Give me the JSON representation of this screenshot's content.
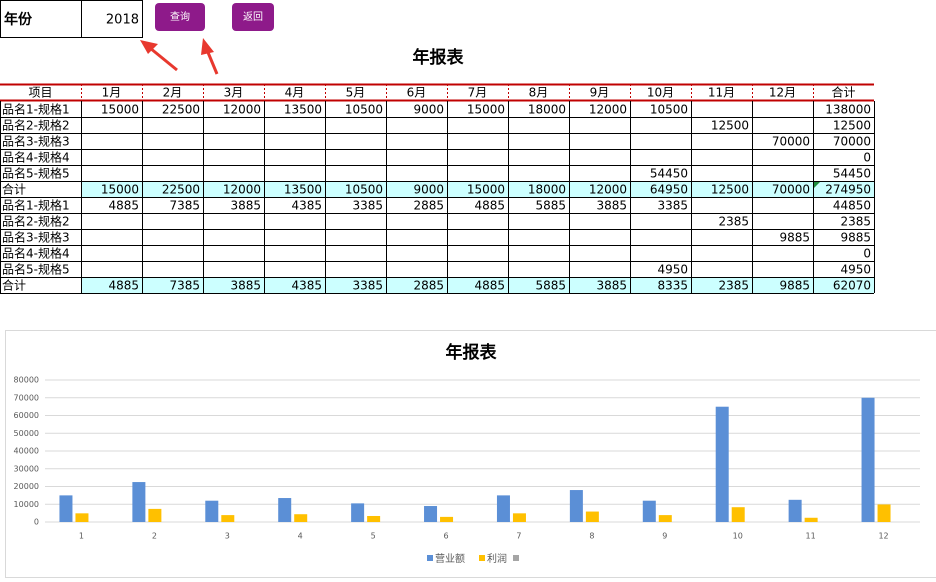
{
  "year_label": "年份",
  "year_value": 2018,
  "buttons": [
    "查询",
    "返回"
  ],
  "title": "年报表",
  "table": {
    "header": [
      "项目",
      "1月",
      "2月",
      "3月",
      "4月",
      "5月",
      "6月",
      "7月",
      "8月",
      "9月",
      "10月",
      "11月",
      "12月",
      "合计"
    ],
    "rows": [
      [
        "品名1-规格1",
        15000,
        22500,
        12000,
        13500,
        10500,
        9000,
        15000,
        18000,
        12000,
        10500,
        null,
        null,
        138000
      ],
      [
        "品名2-规格2",
        null,
        null,
        null,
        null,
        null,
        null,
        null,
        null,
        null,
        null,
        12500,
        null,
        12500
      ],
      [
        "品名3-规格3",
        null,
        null,
        null,
        null,
        null,
        null,
        null,
        null,
        null,
        null,
        null,
        70000,
        70000
      ],
      [
        "品名4-规格4",
        null,
        null,
        null,
        null,
        null,
        null,
        null,
        null,
        null,
        null,
        null,
        null,
        0
      ],
      [
        "品名5-规格5",
        null,
        null,
        null,
        null,
        null,
        null,
        null,
        null,
        null,
        54450,
        null,
        null,
        54450
      ],
      [
        "合计",
        15000,
        22500,
        12000,
        13500,
        10500,
        9000,
        15000,
        18000,
        12000,
        64950,
        12500,
        70000,
        274950
      ],
      [
        "品名1-规格1",
        4885,
        7385,
        3885,
        4385,
        3385,
        2885,
        4885,
        5885,
        3885,
        3385,
        null,
        null,
        44850
      ],
      [
        "品名2-规格2",
        null,
        null,
        null,
        null,
        null,
        null,
        null,
        null,
        null,
        null,
        2385,
        null,
        2385
      ],
      [
        "品名3-规格3",
        null,
        null,
        null,
        null,
        null,
        null,
        null,
        null,
        null,
        null,
        null,
        9885,
        9885
      ],
      [
        "品名4-规格4",
        null,
        null,
        null,
        null,
        null,
        null,
        null,
        null,
        null,
        null,
        null,
        null,
        0
      ],
      [
        "品名5-规格5",
        null,
        null,
        null,
        null,
        null,
        null,
        null,
        null,
        null,
        4950,
        null,
        null,
        4950
      ],
      [
        "合计",
        4885,
        7385,
        3885,
        4385,
        3385,
        2885,
        4885,
        5885,
        3885,
        8335,
        2385,
        9885,
        62070
      ]
    ],
    "total_row_color": "#ccffff"
  },
  "chart_data": {
    "type": "bar",
    "title": "年报表",
    "categories": [
      "1",
      "2",
      "3",
      "4",
      "5",
      "6",
      "7",
      "8",
      "9",
      "10",
      "11",
      "12"
    ],
    "series": [
      {
        "name": "营业额",
        "color": "#5b8fd6",
        "values": [
          15000,
          22500,
          12000,
          13500,
          10500,
          9000,
          15000,
          18000,
          12000,
          64950,
          12500,
          70000
        ]
      },
      {
        "name": "利润",
        "color": "#ffc000",
        "values": [
          4885,
          7385,
          3885,
          4385,
          3385,
          2885,
          4885,
          5885,
          3885,
          8335,
          2385,
          9885
        ]
      }
    ],
    "ylim": [
      0,
      80000
    ],
    "yticks": [
      0,
      10000,
      20000,
      30000,
      40000,
      50000,
      60000,
      70000,
      80000
    ],
    "grid": true,
    "legend": "bottom"
  }
}
